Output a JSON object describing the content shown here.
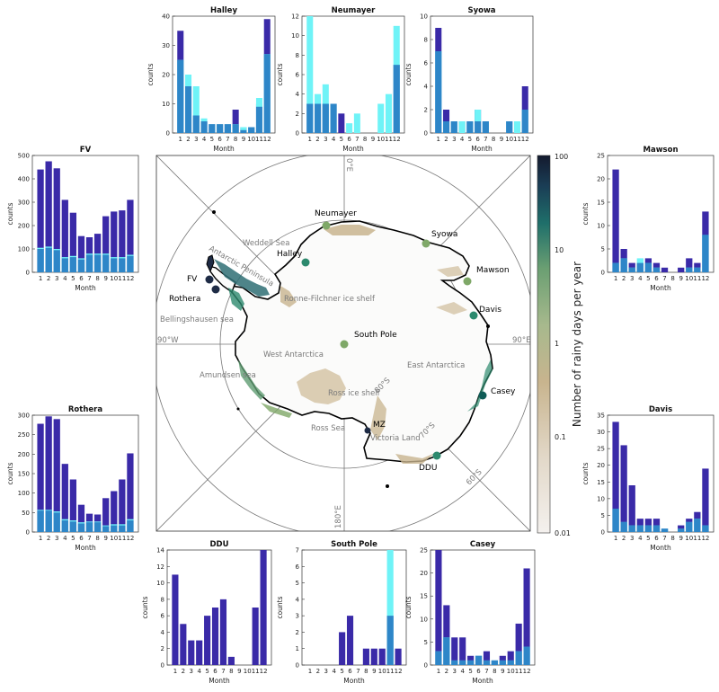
{
  "map": {
    "colorbar": {
      "label": "Number of rainy days per year",
      "ticks": [
        "100",
        "10",
        "1",
        "0.1",
        "0.01"
      ],
      "scale": "log",
      "range": [
        0.01,
        100
      ]
    },
    "meridian_labels": [
      "0°E",
      "90°E",
      "180°E",
      "90°W"
    ],
    "latitude_labels": [
      "80°S",
      "70°S",
      "60°S"
    ],
    "stations": [
      "Neumayer",
      "Halley",
      "Syowa",
      "Mawson",
      "Davis",
      "Casey",
      "DDU",
      "MZ",
      "South Pole",
      "FV",
      "Rothera"
    ],
    "regions": [
      "Weddell Sea",
      "Antarctic Peninsula",
      "Ronne-Filchner ice shelf",
      "Bellingshausen sea",
      "West Antarctica",
      "Amundsen sea",
      "East Antarctica",
      "Ross ice shelf",
      "Ross Sea",
      "Victoria Land"
    ],
    "station_colors": {
      "low": "#7fa868",
      "mid": "#2d8a6e",
      "high": "#0f5c57",
      "vhigh": "#1e2b45"
    }
  },
  "colors": {
    "total": "#3a2aa8",
    "dark": "#2e86c8",
    "light": "#6ff3f7"
  },
  "chart_data": [
    {
      "type": "bar",
      "title": "Halley",
      "xlabel": "Month",
      "ylabel": "counts",
      "ylim": [
        0,
        40
      ],
      "yticks": [
        0,
        10,
        20,
        30,
        40
      ],
      "categories": [
        "1",
        "2",
        "3",
        "4",
        "5",
        "6",
        "7",
        "8",
        "9",
        "10",
        "11",
        "12"
      ],
      "series": [
        {
          "key": "total",
          "values": [
            35,
            16,
            6,
            4,
            3,
            3,
            3,
            8,
            2,
            2,
            10,
            39
          ]
        },
        {
          "key": "light",
          "values": [
            25,
            20,
            16,
            5,
            3,
            3,
            3,
            3,
            2,
            2,
            12,
            27
          ]
        },
        {
          "key": "dark",
          "values": [
            25,
            16,
            6,
            4,
            3,
            3,
            3,
            3,
            1,
            2,
            9,
            27
          ]
        }
      ]
    },
    {
      "type": "bar",
      "title": "Neumayer",
      "xlabel": "Month",
      "ylabel": "counts",
      "ylim": [
        0,
        12
      ],
      "yticks": [
        0,
        2,
        4,
        6,
        8,
        10,
        12
      ],
      "categories": [
        "1",
        "2",
        "3",
        "4",
        "5",
        "6",
        "7",
        "8",
        "9",
        "10",
        "11",
        "12"
      ],
      "series": [
        {
          "key": "total",
          "values": [
            3,
            3,
            3,
            3,
            2,
            0,
            0,
            0,
            0,
            0,
            0,
            7
          ]
        },
        {
          "key": "light",
          "values": [
            12,
            4,
            5,
            3,
            0,
            1,
            2,
            0,
            0,
            3,
            4,
            11
          ]
        },
        {
          "key": "dark",
          "values": [
            3,
            3,
            3,
            3,
            0,
            0,
            0,
            0,
            0,
            0,
            0,
            7
          ]
        }
      ]
    },
    {
      "type": "bar",
      "title": "Syowa",
      "xlabel": "Month",
      "ylabel": "counts",
      "ylim": [
        0,
        10
      ],
      "yticks": [
        0,
        2,
        4,
        6,
        8,
        10
      ],
      "categories": [
        "1",
        "2",
        "3",
        "4",
        "5",
        "6",
        "7",
        "8",
        "9",
        "10",
        "11",
        "12"
      ],
      "series": [
        {
          "key": "total",
          "values": [
            9,
            2,
            1,
            1,
            1,
            2,
            1,
            0,
            0,
            1,
            0,
            4
          ]
        },
        {
          "key": "light",
          "values": [
            7,
            1,
            1,
            1,
            1,
            2,
            1,
            0,
            0,
            1,
            1,
            2
          ]
        },
        {
          "key": "dark",
          "values": [
            7,
            1,
            1,
            0,
            1,
            1,
            1,
            0,
            0,
            1,
            0,
            2
          ]
        }
      ]
    },
    {
      "type": "bar",
      "title": "FV",
      "xlabel": "Month",
      "ylabel": "counts",
      "ylim": [
        0,
        500
      ],
      "yticks": [
        0,
        100,
        200,
        300,
        400,
        500
      ],
      "categories": [
        "1",
        "2",
        "3",
        "4",
        "5",
        "6",
        "7",
        "8",
        "9",
        "10",
        "11",
        "12"
      ],
      "series": [
        {
          "key": "total",
          "values": [
            440,
            475,
            445,
            310,
            255,
            155,
            150,
            165,
            240,
            260,
            265,
            310
          ]
        },
        {
          "key": "light",
          "values": [
            105,
            110,
            100,
            65,
            70,
            60,
            80,
            80,
            80,
            65,
            65,
            75
          ]
        },
        {
          "key": "dark",
          "values": [
            100,
            105,
            95,
            60,
            65,
            55,
            75,
            75,
            75,
            60,
            60,
            70
          ]
        }
      ]
    },
    {
      "type": "bar",
      "title": "Mawson",
      "xlabel": "Month",
      "ylabel": "counts",
      "ylim": [
        0,
        25
      ],
      "yticks": [
        0,
        5,
        10,
        15,
        20,
        25
      ],
      "categories": [
        "1",
        "2",
        "3",
        "4",
        "5",
        "6",
        "7",
        "8",
        "9",
        "10",
        "11",
        "12"
      ],
      "series": [
        {
          "key": "total",
          "values": [
            22,
            5,
            2,
            2,
            3,
            2,
            1,
            0,
            1,
            3,
            2,
            13
          ]
        },
        {
          "key": "light",
          "values": [
            2,
            3,
            1,
            3,
            2,
            1,
            0,
            0,
            0,
            1,
            1,
            8
          ]
        },
        {
          "key": "dark",
          "values": [
            2,
            3,
            1,
            2,
            2,
            1,
            0,
            0,
            0,
            1,
            1,
            8
          ]
        }
      ]
    },
    {
      "type": "bar",
      "title": "Davis",
      "xlabel": "Month",
      "ylabel": "counts",
      "ylim": [
        0,
        35
      ],
      "yticks": [
        0,
        5,
        10,
        15,
        20,
        25,
        30,
        35
      ],
      "categories": [
        "1",
        "2",
        "3",
        "4",
        "5",
        "6",
        "7",
        "8",
        "9",
        "10",
        "11",
        "12"
      ],
      "series": [
        {
          "key": "total",
          "values": [
            33,
            26,
            14,
            4,
            4,
            4,
            1,
            0,
            2,
            4,
            6,
            19
          ]
        },
        {
          "key": "light",
          "values": [
            7,
            3,
            2,
            2,
            2,
            2,
            1,
            0,
            1,
            3,
            4,
            2
          ]
        },
        {
          "key": "dark",
          "values": [
            7,
            3,
            2,
            2,
            2,
            2,
            1,
            0,
            1,
            3,
            4,
            2
          ]
        }
      ]
    },
    {
      "type": "bar",
      "title": "Rothera",
      "xlabel": "Month",
      "ylabel": "counts",
      "ylim": [
        0,
        300
      ],
      "yticks": [
        0,
        50,
        100,
        150,
        200,
        250,
        300
      ],
      "categories": [
        "1",
        "2",
        "3",
        "4",
        "5",
        "6",
        "7",
        "8",
        "9",
        "10",
        "11",
        "12"
      ],
      "series": [
        {
          "key": "total",
          "values": [
            278,
            297,
            290,
            175,
            135,
            70,
            47,
            45,
            87,
            105,
            135,
            202
          ]
        },
        {
          "key": "light",
          "values": [
            57,
            57,
            53,
            33,
            30,
            25,
            27,
            27,
            17,
            20,
            20,
            33
          ]
        },
        {
          "key": "dark",
          "values": [
            55,
            55,
            50,
            30,
            27,
            22,
            25,
            25,
            15,
            17,
            17,
            30
          ]
        }
      ]
    },
    {
      "type": "bar",
      "title": "DDU",
      "xlabel": "Month",
      "ylabel": "counts",
      "ylim": [
        0,
        14
      ],
      "yticks": [
        0,
        2,
        4,
        6,
        8,
        10,
        12,
        14
      ],
      "categories": [
        "1",
        "2",
        "3",
        "4",
        "5",
        "6",
        "7",
        "8",
        "9",
        "10",
        "11",
        "12"
      ],
      "series": [
        {
          "key": "total",
          "values": [
            11,
            5,
            3,
            3,
            6,
            7,
            8,
            1,
            0,
            0,
            7,
            14
          ]
        },
        {
          "key": "light",
          "values": [
            0,
            0,
            0,
            0,
            0,
            0,
            0,
            0,
            0,
            0,
            0,
            0
          ]
        },
        {
          "key": "dark",
          "values": [
            0,
            0,
            0,
            0,
            0,
            0,
            0,
            0,
            0,
            0,
            0,
            0
          ]
        }
      ]
    },
    {
      "type": "bar",
      "title": "South Pole",
      "xlabel": "Month",
      "ylabel": "counts",
      "ylim": [
        0,
        7
      ],
      "yticks": [
        0,
        1,
        2,
        3,
        4,
        5,
        6,
        7
      ],
      "categories": [
        "1",
        "2",
        "3",
        "4",
        "5",
        "6",
        "7",
        "8",
        "9",
        "10",
        "11",
        "12"
      ],
      "series": [
        {
          "key": "total",
          "values": [
            0,
            0,
            0,
            0,
            2,
            3,
            0,
            1,
            1,
            1,
            3,
            1
          ]
        },
        {
          "key": "light",
          "values": [
            0,
            0,
            0,
            0,
            0,
            0,
            0,
            0,
            0,
            0,
            7,
            0
          ]
        },
        {
          "key": "dark",
          "values": [
            0,
            0,
            0,
            0,
            0,
            0,
            0,
            0,
            0,
            0,
            3,
            0
          ]
        }
      ]
    },
    {
      "type": "bar",
      "title": "Casey",
      "xlabel": "Month",
      "ylabel": "counts",
      "ylim": [
        0,
        25
      ],
      "yticks": [
        0,
        5,
        10,
        15,
        20,
        25
      ],
      "categories": [
        "1",
        "2",
        "3",
        "4",
        "5",
        "6",
        "7",
        "8",
        "9",
        "10",
        "11",
        "12"
      ],
      "series": [
        {
          "key": "total",
          "values": [
            25,
            13,
            6,
            6,
            2,
            2,
            3,
            1,
            2,
            3,
            9,
            21
          ]
        },
        {
          "key": "light",
          "values": [
            3,
            6,
            1,
            1,
            1,
            2,
            1,
            1,
            1,
            1,
            3,
            4
          ]
        },
        {
          "key": "dark",
          "values": [
            3,
            6,
            1,
            1,
            1,
            2,
            1,
            1,
            1,
            1,
            3,
            4
          ]
        }
      ]
    }
  ]
}
